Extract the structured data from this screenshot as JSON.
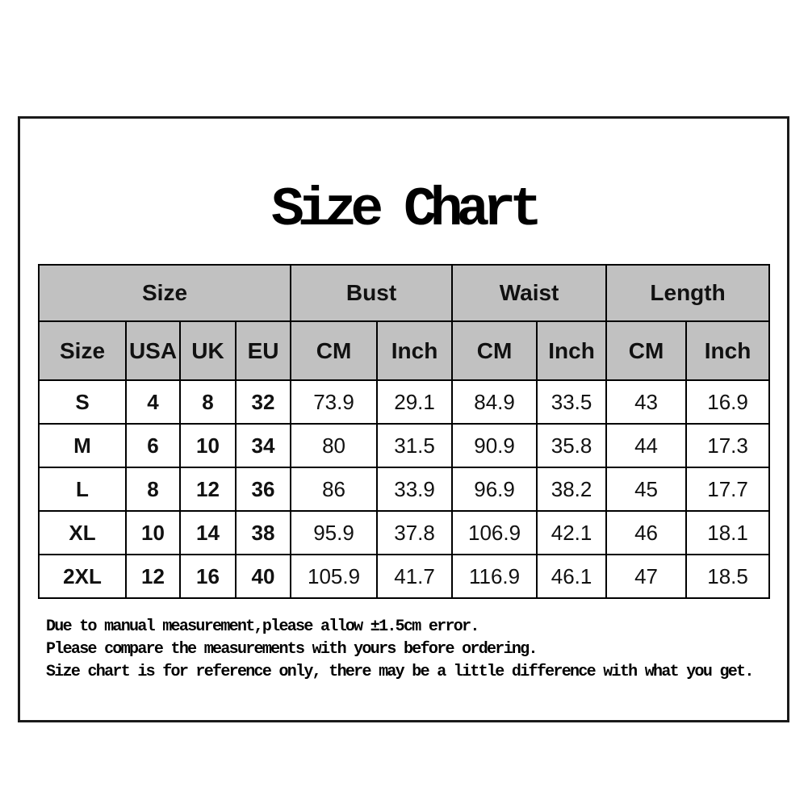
{
  "page": {
    "background": "#ffffff",
    "frame_border_color": "#1a1a1a"
  },
  "title": "Size Chart",
  "table": {
    "header_bg": "#c1c1c1",
    "border_color": "#000000",
    "groups": [
      {
        "label": "Size",
        "span": 4
      },
      {
        "label": "Bust",
        "span": 2
      },
      {
        "label": "Waist",
        "span": 2
      },
      {
        "label": "Length",
        "span": 2
      }
    ],
    "columns": [
      "Size",
      "USA",
      "UK",
      "EU",
      "CM",
      "Inch",
      "CM",
      "Inch",
      "CM",
      "Inch"
    ],
    "rows": [
      [
        "S",
        "4",
        "8",
        "32",
        "73.9",
        "29.1",
        "84.9",
        "33.5",
        "43",
        "16.9"
      ],
      [
        "M",
        "6",
        "10",
        "34",
        "80",
        "31.5",
        "90.9",
        "35.8",
        "44",
        "17.3"
      ],
      [
        "L",
        "8",
        "12",
        "36",
        "86",
        "33.9",
        "96.9",
        "38.2",
        "45",
        "17.7"
      ],
      [
        "XL",
        "10",
        "14",
        "38",
        "95.9",
        "37.8",
        "106.9",
        "42.1",
        "46",
        "18.1"
      ],
      [
        "2XL",
        "12",
        "16",
        "40",
        "105.9",
        "41.7",
        "116.9",
        "46.1",
        "47",
        "18.5"
      ]
    ]
  },
  "notes": [
    "Due to manual measurement,please allow ±1.5cm error.",
    "Please compare the measurements with yours before ordering.",
    "Size chart is for reference only, there may be a little difference with what you get."
  ],
  "chart_data": {
    "type": "table",
    "title": "Size Chart",
    "column_groups": [
      {
        "label": "Size",
        "columns": [
          "Size",
          "USA",
          "UK",
          "EU"
        ]
      },
      {
        "label": "Bust",
        "columns": [
          "CM",
          "Inch"
        ]
      },
      {
        "label": "Waist",
        "columns": [
          "CM",
          "Inch"
        ]
      },
      {
        "label": "Length",
        "columns": [
          "CM",
          "Inch"
        ]
      }
    ],
    "columns": [
      "Size",
      "USA",
      "UK",
      "EU",
      "Bust CM",
      "Bust Inch",
      "Waist CM",
      "Waist Inch",
      "Length CM",
      "Length Inch"
    ],
    "rows": [
      {
        "size": "S",
        "usa": 4,
        "uk": 8,
        "eu": 32,
        "bust_cm": 73.9,
        "bust_inch": 29.1,
        "waist_cm": 84.9,
        "waist_inch": 33.5,
        "length_cm": 43,
        "length_inch": 16.9
      },
      {
        "size": "M",
        "usa": 6,
        "uk": 10,
        "eu": 34,
        "bust_cm": 80,
        "bust_inch": 31.5,
        "waist_cm": 90.9,
        "waist_inch": 35.8,
        "length_cm": 44,
        "length_inch": 17.3
      },
      {
        "size": "L",
        "usa": 8,
        "uk": 12,
        "eu": 36,
        "bust_cm": 86,
        "bust_inch": 33.9,
        "waist_cm": 96.9,
        "waist_inch": 38.2,
        "length_cm": 45,
        "length_inch": 17.7
      },
      {
        "size": "XL",
        "usa": 10,
        "uk": 14,
        "eu": 38,
        "bust_cm": 95.9,
        "bust_inch": 37.8,
        "waist_cm": 106.9,
        "waist_inch": 42.1,
        "length_cm": 46,
        "length_inch": 18.1
      },
      {
        "size": "2XL",
        "usa": 12,
        "uk": 16,
        "eu": 40,
        "bust_cm": 105.9,
        "bust_inch": 41.7,
        "waist_cm": 116.9,
        "waist_inch": 46.1,
        "length_cm": 47,
        "length_inch": 18.5
      }
    ],
    "notes": [
      "Due to manual measurement,please allow ±1.5cm error.",
      "Please compare the measurements with yours before ordering.",
      "Size chart is for reference only, there may be a little difference with what you get."
    ],
    "layout_hints": {
      "header_background": "#c1c1c1",
      "grid": true,
      "bold_columns": [
        "Size",
        "USA",
        "UK",
        "EU"
      ]
    }
  }
}
